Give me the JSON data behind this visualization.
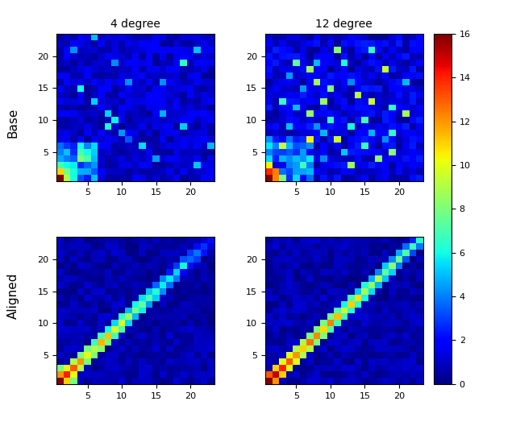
{
  "title_col1": "4 degree",
  "title_col2": "12 degree",
  "row_label1": "Base",
  "row_label2": "Aligned",
  "colorbar_ticks": [
    0,
    2,
    4,
    6,
    8,
    10,
    12,
    14,
    16
  ],
  "vmin": 0,
  "vmax": 16,
  "n_bins": 23,
  "xticks": [
    5,
    10,
    15,
    20
  ],
  "yticks": [
    5,
    10,
    15,
    20
  ],
  "figsize": [
    6.4,
    5.24
  ],
  "dpi": 100
}
